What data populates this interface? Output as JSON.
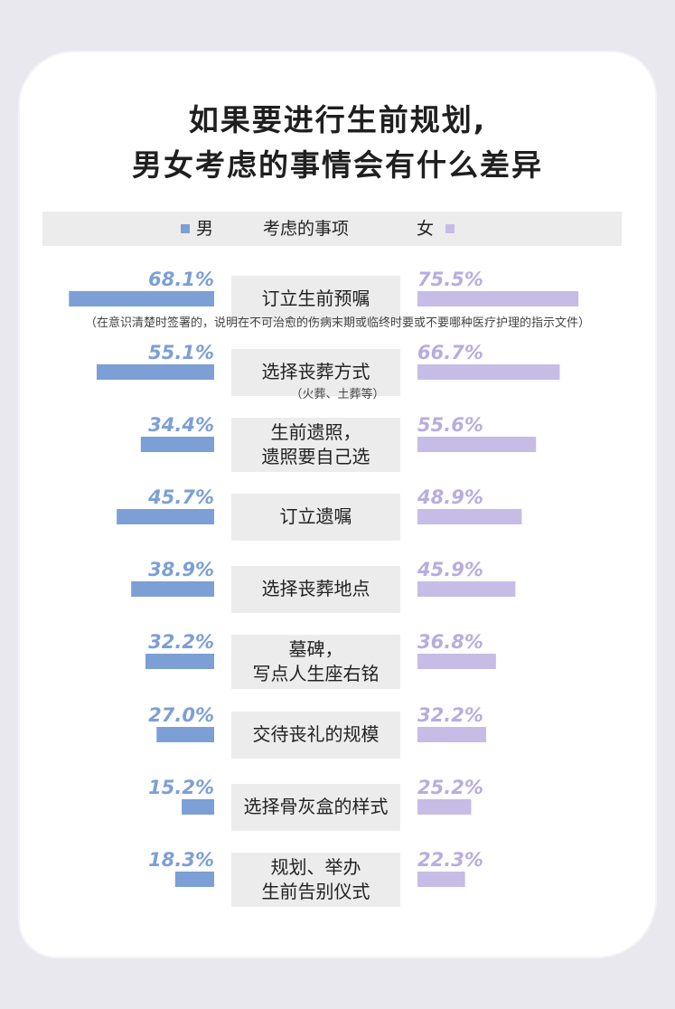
{
  "title": [
    "如果要进行生前规划,",
    "男女考虑的事情会有什么差异"
  ],
  "header": {
    "male": "男",
    "middle": "考虑的事项",
    "female": "女"
  },
  "colors": {
    "male": "#7c9fd6",
    "female": "#c7bce6",
    "male_text": "#7c9fd6",
    "female_text": "#b9acdf"
  },
  "notes": [
    "（在意识清楚时签署的，说明在不可治愈的伤病末期或临终时要或不要哪种医疗护理的指示文件）",
    "（火葬、土葬等）"
  ],
  "chart_data": {
    "type": "bar",
    "layout": "butterfly",
    "categories": [
      [
        "订立生前预嘱"
      ],
      [
        "选择丧葬方式"
      ],
      [
        "生前遗照，",
        "遗照要自己选"
      ],
      [
        "订立遗嘱"
      ],
      [
        "选择丧葬地点"
      ],
      [
        "墓碑，",
        "写点人生座右铭"
      ],
      [
        "交待丧礼的规模"
      ],
      [
        "选择骨灰盒的样式"
      ],
      [
        "规划、举办",
        "生前告别仪式"
      ]
    ],
    "series": [
      {
        "name": "男",
        "values": [
          68.1,
          55.1,
          34.4,
          45.7,
          38.9,
          32.2,
          27.0,
          15.2,
          18.3
        ],
        "labels": [
          "68.1%",
          "55.1%",
          "34.4%",
          "45.7%",
          "38.9%",
          "32.2%",
          "27.0%",
          "15.2%",
          "18.3%"
        ]
      },
      {
        "name": "女",
        "values": [
          75.5,
          66.7,
          55.6,
          48.9,
          45.9,
          36.8,
          32.2,
          25.2,
          22.3
        ],
        "labels": [
          "75.5%",
          "66.7%",
          "55.6%",
          "48.9%",
          "45.9%",
          "36.8%",
          "32.2%",
          "25.2%",
          "22.3%"
        ]
      }
    ]
  }
}
